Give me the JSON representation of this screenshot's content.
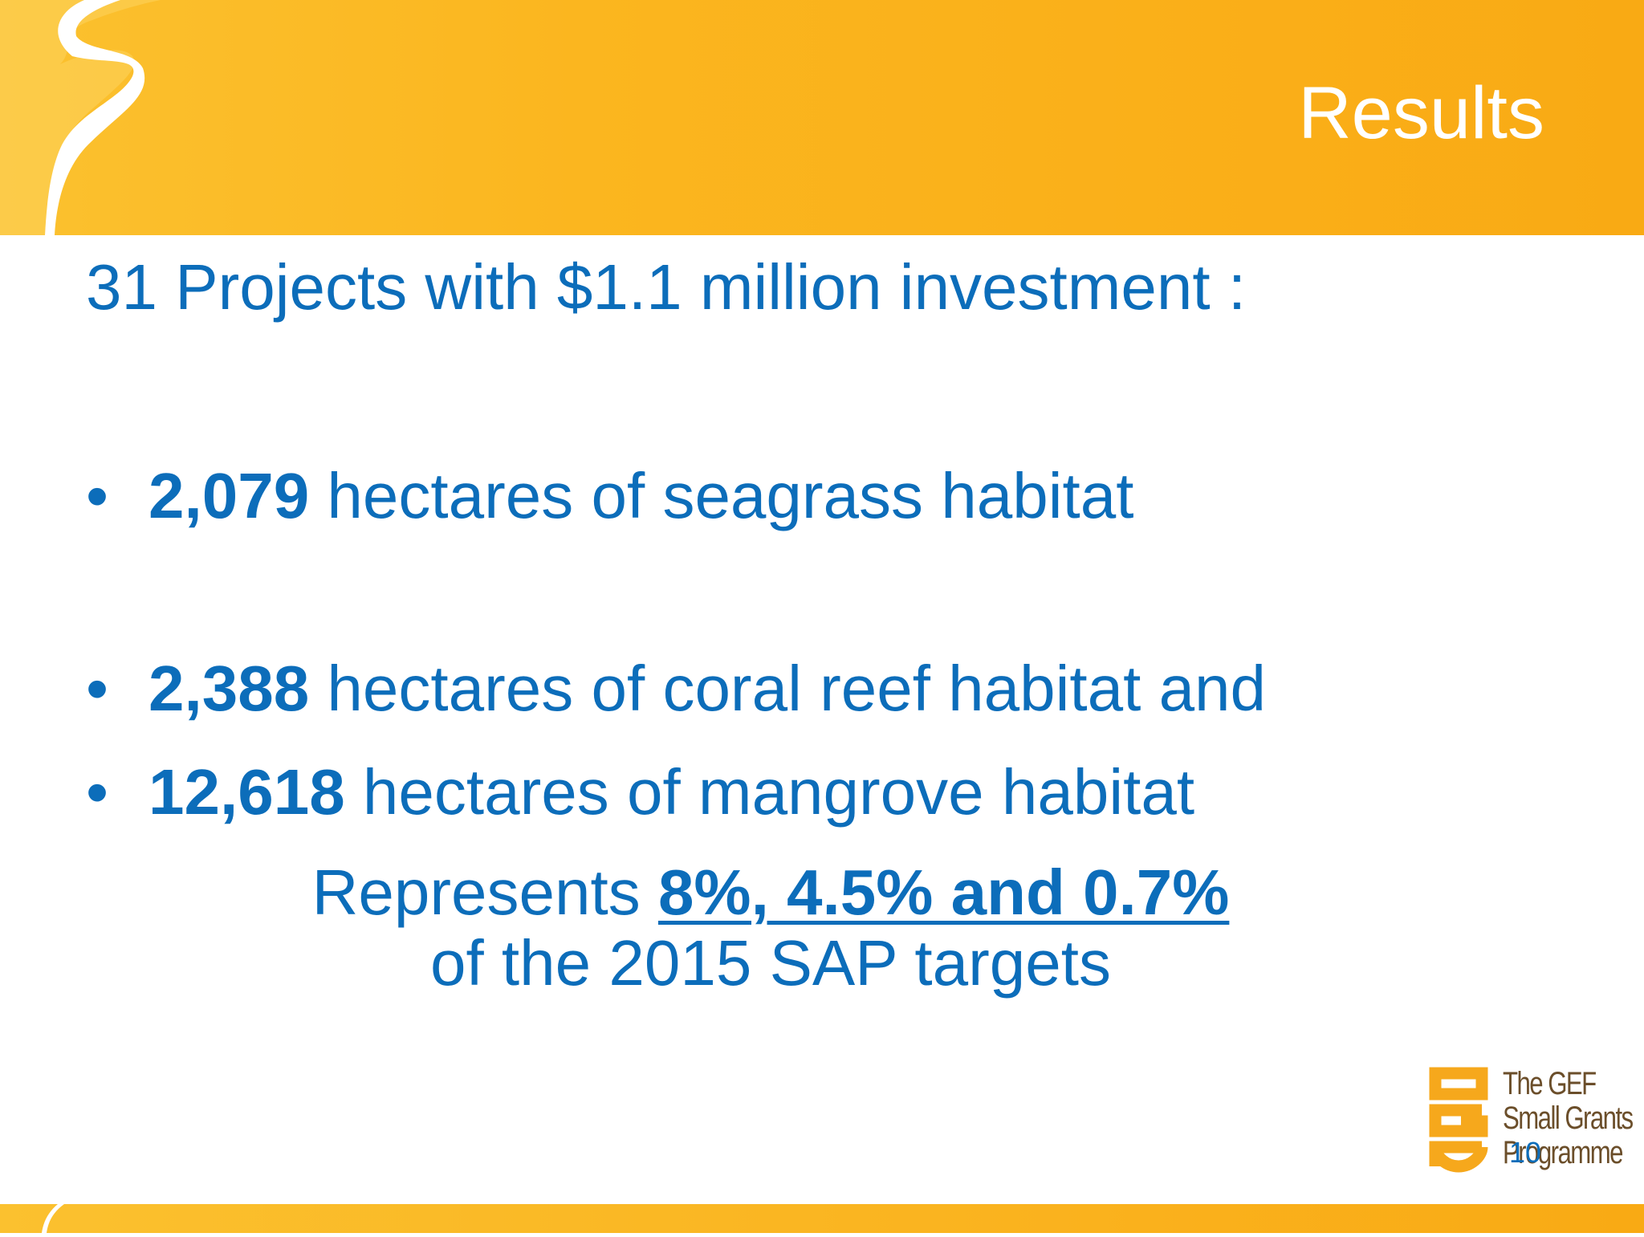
{
  "slide": {
    "title": "Results",
    "intro": "31 Projects with $1.1 million investment :",
    "bullets": [
      {
        "dot": "•",
        "number": "2,079",
        "text": " hectares of seagrass habitat"
      },
      {
        "dot": "•",
        "number": "2,388",
        "text": " hectares of coral reef habitat and"
      },
      {
        "dot": "•",
        "number": "12,618",
        "text": " hectares of mangrove habitat"
      }
    ],
    "summary": {
      "prefix": "Represents ",
      "highlight": "8%, 4.5% and 0.7%",
      "line2": "of the 2015 SAP targets"
    },
    "page_number": "10"
  },
  "logo": {
    "lines": [
      "The GEF",
      "Small Grants",
      "Programme"
    ],
    "monogram": "SGP",
    "colors": {
      "monogram": "#f6a81c",
      "text": "#6b4e2a"
    }
  },
  "colors": {
    "band": "#fbb61f",
    "text": "#0c6dba",
    "title": "#ffffff"
  }
}
